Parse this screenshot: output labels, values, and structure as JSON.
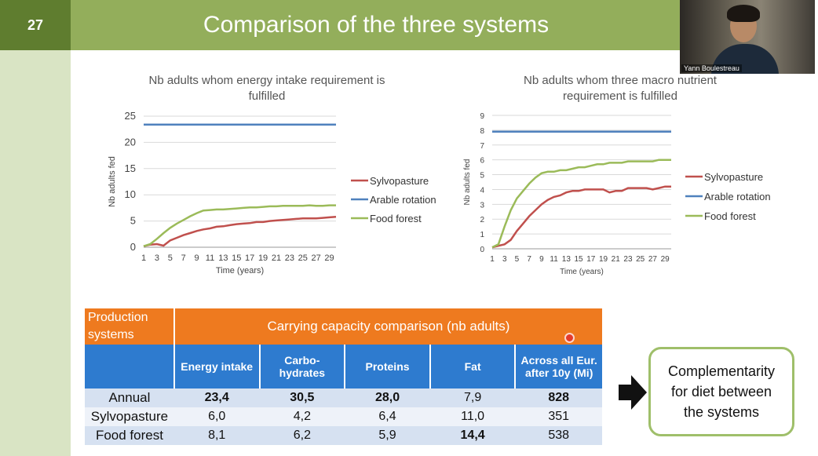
{
  "slide": {
    "number": "27",
    "title": "Comparison of the three systems"
  },
  "webcam": {
    "name": "Yann Boulestreau"
  },
  "chart_data": [
    {
      "type": "line",
      "title": "Nb adults whom energy intake requirement is fulfilled",
      "title_lines": [
        "Nb adults whom energy intake requirement is",
        "fulfilled"
      ],
      "xlabel": "Time (years)",
      "ylabel": "Nb adults fed",
      "xlim": [
        1,
        30
      ],
      "ylim": [
        0,
        25
      ],
      "yticks": [
        "0",
        "5",
        "10",
        "15",
        "20",
        "25"
      ],
      "xticks": [
        "1",
        "3",
        "5",
        "7",
        "9",
        "11",
        "13",
        "15",
        "17",
        "19",
        "21",
        "23",
        "25",
        "27",
        "29"
      ],
      "legend_position": "right",
      "series": [
        {
          "name": "Sylvopasture",
          "color": "#c0504d",
          "x": [
            1,
            2,
            3,
            4,
            5,
            6,
            7,
            8,
            9,
            10,
            11,
            12,
            13,
            14,
            15,
            16,
            17,
            18,
            19,
            20,
            21,
            22,
            23,
            24,
            25,
            26,
            27,
            28,
            29,
            30
          ],
          "y": [
            0.2,
            0.5,
            0.6,
            0.3,
            1.3,
            1.8,
            2.3,
            2.7,
            3.1,
            3.4,
            3.6,
            3.9,
            4.0,
            4.2,
            4.4,
            4.5,
            4.6,
            4.8,
            4.8,
            5.0,
            5.1,
            5.2,
            5.3,
            5.4,
            5.5,
            5.5,
            5.5,
            5.6,
            5.7,
            5.8
          ]
        },
        {
          "name": "Arable rotation",
          "color": "#4f81bd",
          "x": [
            1,
            30
          ],
          "y": [
            23.4,
            23.4
          ]
        },
        {
          "name": "Food forest",
          "color": "#9bbb59",
          "x": [
            1,
            2,
            3,
            4,
            5,
            6,
            7,
            8,
            9,
            10,
            11,
            12,
            13,
            14,
            15,
            16,
            17,
            18,
            19,
            20,
            21,
            22,
            23,
            24,
            25,
            26,
            27,
            28,
            29,
            30
          ],
          "y": [
            0.2,
            0.6,
            1.6,
            2.7,
            3.7,
            4.5,
            5.2,
            5.9,
            6.5,
            7.0,
            7.1,
            7.2,
            7.2,
            7.3,
            7.4,
            7.5,
            7.6,
            7.6,
            7.7,
            7.8,
            7.8,
            7.9,
            7.9,
            7.9,
            7.9,
            8.0,
            7.9,
            7.9,
            8.0,
            8.0
          ]
        }
      ]
    },
    {
      "type": "line",
      "title": "Nb adults whom three macro nutrient requirement is fulfilled",
      "title_lines": [
        "Nb adults whom three macro nutrient",
        "requirement is fulfilled"
      ],
      "xlabel": "Time (years)",
      "ylabel": "Nb adults fed",
      "xlim": [
        1,
        30
      ],
      "ylim": [
        0,
        9
      ],
      "yticks": [
        "0",
        "1",
        "2",
        "3",
        "4",
        "5",
        "6",
        "7",
        "8",
        "9"
      ],
      "xticks": [
        "1",
        "3",
        "5",
        "7",
        "9",
        "11",
        "13",
        "15",
        "17",
        "19",
        "21",
        "23",
        "25",
        "27",
        "29"
      ],
      "legend_position": "right",
      "series": [
        {
          "name": "Sylvopasture",
          "color": "#c0504d",
          "x": [
            1,
            2,
            3,
            4,
            5,
            6,
            7,
            8,
            9,
            10,
            11,
            12,
            13,
            14,
            15,
            16,
            17,
            18,
            19,
            20,
            21,
            22,
            23,
            24,
            25,
            26,
            27,
            28,
            29,
            30
          ],
          "y": [
            0.1,
            0.2,
            0.3,
            0.6,
            1.2,
            1.7,
            2.2,
            2.6,
            3.0,
            3.3,
            3.5,
            3.6,
            3.8,
            3.9,
            3.9,
            4.0,
            4.0,
            4.0,
            4.0,
            3.8,
            3.9,
            3.9,
            4.1,
            4.1,
            4.1,
            4.1,
            4.0,
            4.1,
            4.2,
            4.2
          ]
        },
        {
          "name": "Arable rotation",
          "color": "#4f81bd",
          "x": [
            1,
            30
          ],
          "y": [
            7.9,
            7.9
          ]
        },
        {
          "name": "Food forest",
          "color": "#9bbb59",
          "x": [
            1,
            2,
            3,
            4,
            5,
            6,
            7,
            8,
            9,
            10,
            11,
            12,
            13,
            14,
            15,
            16,
            17,
            18,
            19,
            20,
            21,
            22,
            23,
            24,
            25,
            26,
            27,
            28,
            29,
            30
          ],
          "y": [
            0.1,
            0.3,
            1.5,
            2.6,
            3.4,
            3.9,
            4.4,
            4.8,
            5.1,
            5.2,
            5.2,
            5.3,
            5.3,
            5.4,
            5.5,
            5.5,
            5.6,
            5.7,
            5.7,
            5.8,
            5.8,
            5.8,
            5.9,
            5.9,
            5.9,
            5.9,
            5.9,
            6.0,
            6.0,
            6.0
          ]
        }
      ]
    }
  ],
  "table": {
    "corner_header": [
      "Production",
      "systems"
    ],
    "group_header": "Carrying capacity comparison (nb adults)",
    "columns": [
      {
        "line1": "Energy intake",
        "line2": ""
      },
      {
        "line1": "Carbo-",
        "line2": "hydrates"
      },
      {
        "line1": "Proteins",
        "line2": ""
      },
      {
        "line1": "Fat",
        "line2": ""
      },
      {
        "line1": "Across all Eur.",
        "line2": "after 10y (Mi)"
      }
    ],
    "rows": [
      {
        "name": "Annual",
        "values": [
          "23,4",
          "30,5",
          "28,0",
          "7,9",
          "828"
        ]
      },
      {
        "name": "Sylvopasture",
        "values": [
          "6,0",
          "4,2",
          "6,4",
          "11,0",
          "351"
        ]
      },
      {
        "name": "Food forest",
        "values": [
          "8,1",
          "6,2",
          "5,9",
          "14,4",
          "538"
        ]
      }
    ]
  },
  "callout": {
    "line1": "Complementarity",
    "line2": "for diet between",
    "line3": "the systems"
  }
}
